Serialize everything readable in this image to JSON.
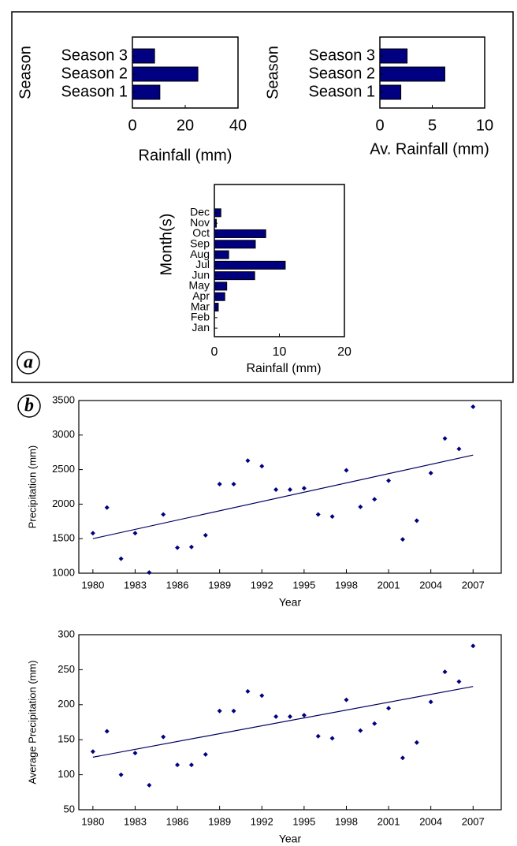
{
  "panel_labels": [
    "a",
    "b"
  ],
  "chart_data": [
    {
      "type": "bar",
      "orientation": "horizontal",
      "xlabel": "Rainfall (mm)",
      "ylabel": "Season",
      "categories": [
        "Season 1",
        "Season 2",
        "Season 3"
      ],
      "values": [
        10.4,
        24.8,
        8.4
      ],
      "color": "#000080",
      "xlim": [
        0,
        40
      ],
      "xticks": [
        0,
        20,
        40
      ]
    },
    {
      "type": "bar",
      "orientation": "horizontal",
      "xlabel": "Av. Rainfall (mm)",
      "ylabel": "Season",
      "categories": [
        "Season 1",
        "Season 2",
        "Season 3"
      ],
      "values": [
        2.0,
        6.2,
        2.6
      ],
      "color": "#000080",
      "xlim": [
        0,
        10
      ],
      "xticks": [
        0,
        5,
        10
      ]
    },
    {
      "type": "bar",
      "orientation": "horizontal",
      "xlabel": "Rainfall (mm)",
      "ylabel": "Month(s)",
      "categories": [
        "Jan",
        "Feb",
        "Mar",
        "Apr",
        "May",
        "Jun",
        "Jul",
        "Aug",
        "Sep",
        "Oct",
        "Nov",
        "Dec"
      ],
      "values": [
        0,
        0,
        0.6,
        1.6,
        1.9,
        6.2,
        10.9,
        2.2,
        6.3,
        7.9,
        0.3,
        1.0
      ],
      "color": "#000080",
      "xlim": [
        0,
        20
      ],
      "xticks": [
        0,
        10,
        20
      ]
    },
    {
      "type": "scatter",
      "xlabel": "Year",
      "ylabel": "Precipitation (mm)",
      "color": "#000080",
      "x": [
        1980,
        1981,
        1982,
        1983,
        1984,
        1985,
        1986,
        1987,
        1988,
        1989,
        1990,
        1991,
        1992,
        1993,
        1994,
        1995,
        1996,
        1997,
        1998,
        1999,
        2000,
        2001,
        2002,
        2003,
        2004,
        2005,
        2006,
        2007
      ],
      "values": [
        1580,
        1950,
        1210,
        1580,
        1010,
        1850,
        1370,
        1380,
        1550,
        2290,
        2290,
        2630,
        2550,
        2210,
        2210,
        2230,
        1850,
        1820,
        2490,
        1960,
        2070,
        2340,
        1490,
        1760,
        2450,
        2950,
        2800,
        3410
      ],
      "trend": {
        "x": [
          1980,
          2007
        ],
        "values": [
          1500,
          2710
        ]
      },
      "xlim": [
        1979,
        2009
      ],
      "xticks": [
        1980,
        1983,
        1986,
        1989,
        1992,
        1995,
        1998,
        2001,
        2004,
        2007
      ],
      "ylim": [
        1000,
        3500
      ],
      "yticks": [
        1000,
        1500,
        2000,
        2500,
        3000,
        3500
      ]
    },
    {
      "type": "scatter",
      "xlabel": "Year",
      "ylabel": "Average Precipitation (mm)",
      "color": "#000080",
      "x": [
        1980,
        1981,
        1982,
        1983,
        1984,
        1985,
        1986,
        1987,
        1988,
        1989,
        1990,
        1991,
        1992,
        1993,
        1994,
        1995,
        1996,
        1997,
        1998,
        1999,
        2000,
        2001,
        2002,
        2003,
        2004,
        2005,
        2006,
        2007
      ],
      "values": [
        133,
        162,
        100,
        131,
        85,
        154,
        114,
        114,
        129,
        191,
        191,
        219,
        213,
        183,
        183,
        185,
        155,
        152,
        207,
        163,
        173,
        195,
        124,
        146,
        204,
        247,
        233,
        284
      ],
      "trend": {
        "x": [
          1980,
          2007
        ],
        "values": [
          125,
          226
        ]
      },
      "xlim": [
        1979,
        2009
      ],
      "xticks": [
        1980,
        1983,
        1986,
        1989,
        1992,
        1995,
        1998,
        2001,
        2004,
        2007
      ],
      "ylim": [
        50,
        300
      ],
      "yticks": [
        50,
        100,
        150,
        200,
        250,
        300
      ]
    }
  ]
}
